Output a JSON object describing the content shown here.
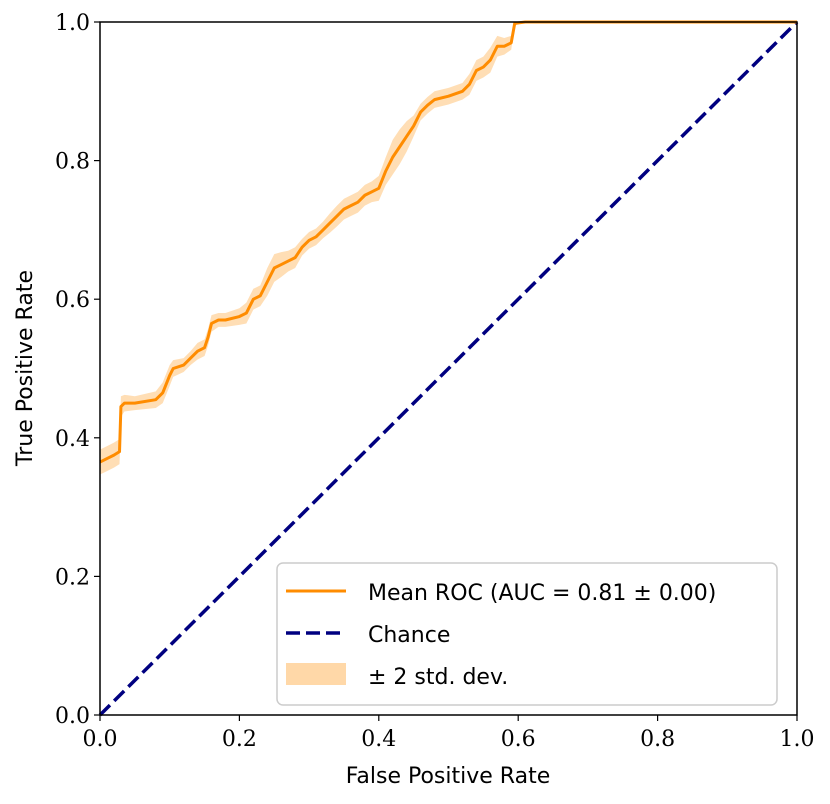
{
  "colors": {
    "roc": "#ff8c00",
    "band": "#ffd8a8",
    "chance": "#000080",
    "axes": "#000000",
    "legend_border": "#cccccc"
  },
  "chart_data": {
    "type": "line",
    "title": "",
    "xlabel": "False Positive Rate",
    "ylabel": "True Positive Rate",
    "xlim": [
      0.0,
      1.0
    ],
    "ylim": [
      0.0,
      1.0
    ],
    "x_ticks": [
      0.0,
      0.2,
      0.4,
      0.6,
      0.8,
      1.0
    ],
    "y_ticks": [
      0.0,
      0.2,
      0.4,
      0.6,
      0.8,
      1.0
    ],
    "x_tick_labels": [
      "0.0",
      "0.2",
      "0.4",
      "0.6",
      "0.8",
      "1.0"
    ],
    "y_tick_labels": [
      "0.0",
      "0.2",
      "0.4",
      "0.6",
      "0.8",
      "1.0"
    ],
    "grid": false,
    "legend_position": "lower-right",
    "series": [
      {
        "name": "Mean ROC (AUC = 0.81 ± 0.00)",
        "style": "solid",
        "x": [
          0.0,
          0.01,
          0.02,
          0.028,
          0.03,
          0.035,
          0.05,
          0.08,
          0.09,
          0.1,
          0.105,
          0.12,
          0.13,
          0.14,
          0.15,
          0.155,
          0.16,
          0.17,
          0.18,
          0.2,
          0.21,
          0.22,
          0.23,
          0.24,
          0.25,
          0.26,
          0.27,
          0.28,
          0.29,
          0.3,
          0.31,
          0.32,
          0.33,
          0.34,
          0.35,
          0.36,
          0.37,
          0.38,
          0.39,
          0.4,
          0.41,
          0.42,
          0.43,
          0.44,
          0.45,
          0.46,
          0.47,
          0.48,
          0.5,
          0.52,
          0.53,
          0.54,
          0.55,
          0.56,
          0.57,
          0.58,
          0.59,
          0.595,
          0.61,
          0.62,
          1.0
        ],
        "y": [
          0.365,
          0.37,
          0.375,
          0.38,
          0.445,
          0.45,
          0.45,
          0.455,
          0.465,
          0.49,
          0.5,
          0.505,
          0.515,
          0.525,
          0.53,
          0.545,
          0.565,
          0.57,
          0.57,
          0.575,
          0.58,
          0.6,
          0.605,
          0.625,
          0.645,
          0.65,
          0.655,
          0.66,
          0.675,
          0.685,
          0.69,
          0.7,
          0.71,
          0.72,
          0.73,
          0.735,
          0.74,
          0.75,
          0.755,
          0.76,
          0.785,
          0.805,
          0.82,
          0.835,
          0.85,
          0.87,
          0.88,
          0.888,
          0.893,
          0.9,
          0.91,
          0.93,
          0.935,
          0.945,
          0.965,
          0.965,
          0.97,
          0.998,
          1.0,
          1.0,
          1.0
        ],
        "band_halfwidth": [
          0.018,
          0.018,
          0.018,
          0.018,
          0.015,
          0.012,
          0.01,
          0.012,
          0.015,
          0.015,
          0.012,
          0.01,
          0.01,
          0.012,
          0.012,
          0.012,
          0.012,
          0.01,
          0.01,
          0.012,
          0.015,
          0.015,
          0.015,
          0.02,
          0.02,
          0.018,
          0.015,
          0.015,
          0.012,
          0.012,
          0.012,
          0.012,
          0.014,
          0.015,
          0.015,
          0.015,
          0.015,
          0.015,
          0.015,
          0.018,
          0.02,
          0.025,
          0.025,
          0.022,
          0.015,
          0.012,
          0.012,
          0.012,
          0.012,
          0.012,
          0.015,
          0.015,
          0.015,
          0.018,
          0.015,
          0.012,
          0.01,
          0.003,
          0.0,
          0.0,
          0.0
        ]
      },
      {
        "name": "Chance",
        "style": "dashed",
        "x": [
          0.0,
          1.0
        ],
        "y": [
          0.0,
          1.0
        ]
      }
    ],
    "legend_entries": [
      {
        "label": "Mean ROC (AUC = 0.81 ± 0.00)",
        "kind": "line"
      },
      {
        "label": "Chance",
        "kind": "dashed"
      },
      {
        "label": "± 2 std. dev.",
        "kind": "patch"
      }
    ]
  }
}
